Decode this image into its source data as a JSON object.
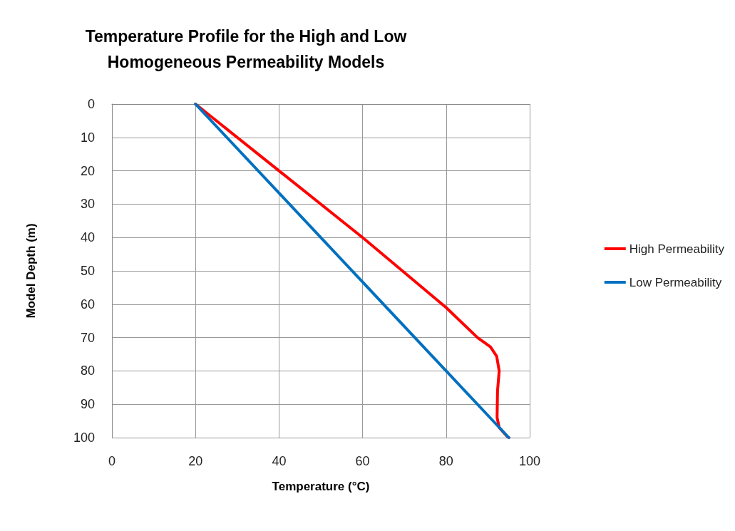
{
  "chart_data": {
    "type": "line",
    "title": "Temperature Profile for the High and Low\nHomogeneous Permeability Models",
    "xlabel": "Temperature (°C)",
    "ylabel": "Model Depth (m)",
    "series": [
      {
        "name": "High Permeability",
        "color": "#ff0000",
        "x": [
          20,
          40,
          60,
          80,
          87.5,
          90.6,
          92.1,
          92.7,
          92.3,
          92.2,
          92.7,
          94.6,
          95
        ],
        "values": [
          0,
          20,
          40,
          61,
          70,
          72.8,
          75.6,
          80,
          86,
          94,
          97,
          99.6,
          100
        ]
      },
      {
        "name": "Low Permeability",
        "color": "#0070c0",
        "x": [
          20,
          95
        ],
        "values": [
          0,
          100
        ]
      }
    ],
    "xlim": [
      0,
      100
    ],
    "xticks": [
      0,
      20,
      40,
      60,
      80,
      100
    ],
    "ylim": [
      100,
      0
    ],
    "yticks": [
      0,
      10,
      20,
      30,
      40,
      50,
      60,
      70,
      80,
      90,
      100
    ],
    "grid": true,
    "legend": "right",
    "marker": "none",
    "line_style": "solid"
  }
}
